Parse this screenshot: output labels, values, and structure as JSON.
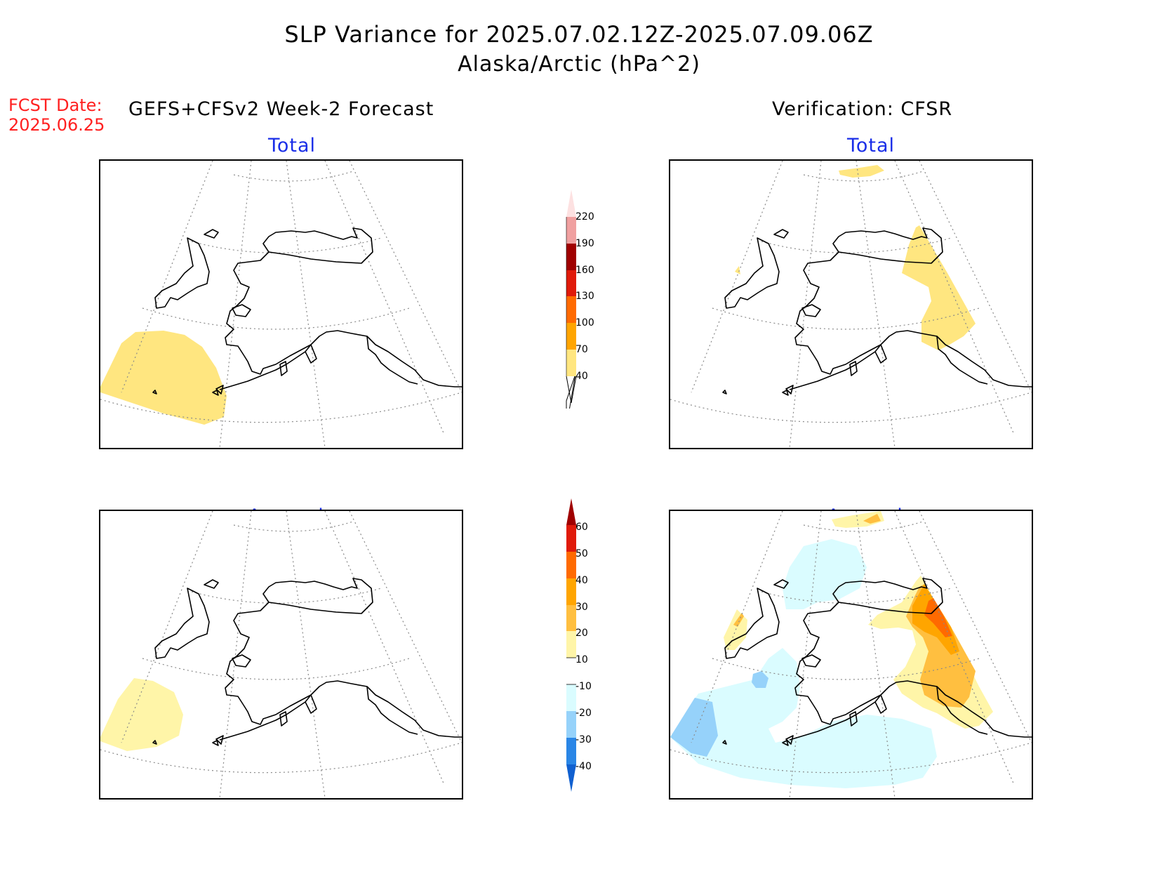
{
  "header": {
    "title": "SLP Variance for 2025.07.02.12Z-2025.07.09.06Z",
    "subtitle": "Alaska/Arctic (hPa^2)",
    "fcst_date_label": "FCST Date:",
    "fcst_date_value": "2025.06.25",
    "left_column_title": "GEFS+CFSv2 Week-2 Forecast",
    "right_column_title": "Verification: CFSR"
  },
  "panels": {
    "forecast_total": {
      "title": "Total"
    },
    "verification_total": {
      "title": "Total"
    },
    "forecast_anomaly": {
      "title": "Anomaly"
    },
    "verification_anomaly": {
      "title": "Anomaly"
    }
  },
  "colorbars": {
    "total": {
      "labels": [
        "220",
        "190",
        "160",
        "130",
        "100",
        "70",
        "40"
      ],
      "colors": [
        "#fde1e1",
        "#f0a0a0",
        "#a00000",
        "#e01a0a",
        "#ff6a00",
        "#ffa500",
        "#ffe680"
      ]
    },
    "anomaly": {
      "labels": [
        "60",
        "50",
        "40",
        "30",
        "20",
        "10",
        "-10",
        "-20",
        "-30",
        "-40"
      ],
      "colors": [
        "#a00000",
        "#e01a0a",
        "#ff6a00",
        "#ffa500",
        "#ffbf40",
        "#fff5a8",
        "#ffffff",
        "#dafcff",
        "#96d2fa",
        "#2a86e6",
        "#1060d0"
      ]
    }
  }
}
